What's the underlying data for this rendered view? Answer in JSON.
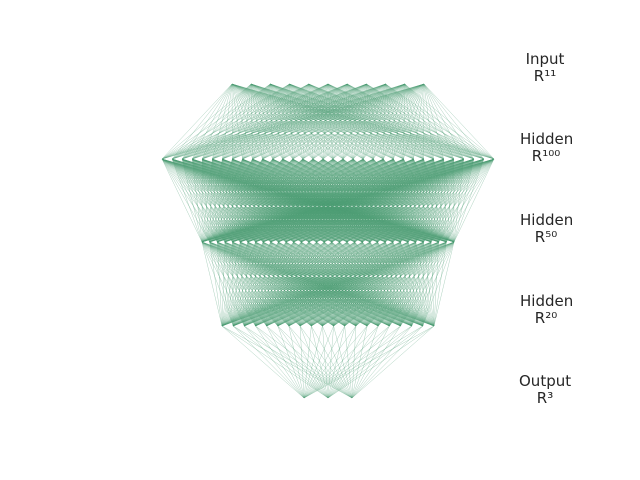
{
  "network": {
    "edge_color": "#4a9b70",
    "layers": [
      {
        "name": "Input",
        "dim": "R¹¹",
        "size": 11
      },
      {
        "name": "Hidden",
        "dim": "R¹⁰⁰",
        "size": 100
      },
      {
        "name": "Hidden",
        "dim": "R⁵⁰",
        "size": 50
      },
      {
        "name": "Hidden",
        "dim": "R²⁰",
        "size": 20
      },
      {
        "name": "Output",
        "dim": "R³",
        "size": 3
      }
    ]
  }
}
